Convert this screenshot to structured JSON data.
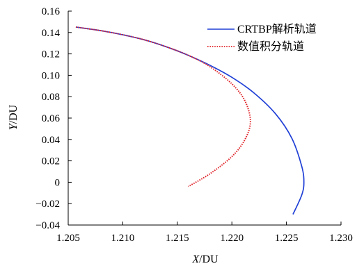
{
  "chart_data": {
    "type": "line",
    "xlabel": {
      "italic": "X",
      "unit": "/DU"
    },
    "ylabel": {
      "italic": "Y",
      "unit": "/DU"
    },
    "xlim": [
      1.205,
      1.23
    ],
    "ylim": [
      -0.04,
      0.16
    ],
    "x_ticks": [
      "1.205",
      "1.210",
      "1.215",
      "1.220",
      "1.225",
      "1.230"
    ],
    "y_ticks": [
      "0.16",
      "0.14",
      "0.12",
      "0.10",
      "0.08",
      "0.06",
      "0.04",
      "0.02",
      "0",
      "−0.02",
      "−0.04"
    ],
    "grid": false,
    "legend_position": "top-right",
    "series": [
      {
        "name": "CRTBP解析轨道",
        "color": "#1f3fd6",
        "style": "solid",
        "points": [
          [
            1.2057,
            0.1451
          ],
          [
            1.208,
            0.1417
          ],
          [
            1.21,
            0.1379
          ],
          [
            1.212,
            0.1331
          ],
          [
            1.214,
            0.1266
          ],
          [
            1.216,
            0.1187
          ],
          [
            1.218,
            0.1093
          ],
          [
            1.22,
            0.0981
          ],
          [
            1.222,
            0.0837
          ],
          [
            1.224,
            0.064
          ],
          [
            1.2255,
            0.041
          ],
          [
            1.2264,
            0.015
          ],
          [
            1.2266,
            0.0
          ],
          [
            1.2264,
            -0.012
          ],
          [
            1.2256,
            -0.03
          ]
        ]
      },
      {
        "name": "数值积分轨道",
        "color": "#e0262b",
        "style": "dotted",
        "points": [
          [
            1.2057,
            0.1451
          ],
          [
            1.208,
            0.1417
          ],
          [
            1.21,
            0.1379
          ],
          [
            1.212,
            0.1331
          ],
          [
            1.214,
            0.1266
          ],
          [
            1.216,
            0.1187
          ],
          [
            1.218,
            0.108
          ],
          [
            1.22,
            0.092
          ],
          [
            1.2212,
            0.076
          ],
          [
            1.2217,
            0.057
          ],
          [
            1.2212,
            0.04
          ],
          [
            1.22,
            0.024
          ],
          [
            1.218,
            0.008
          ],
          [
            1.216,
            -0.004
          ]
        ]
      }
    ]
  }
}
